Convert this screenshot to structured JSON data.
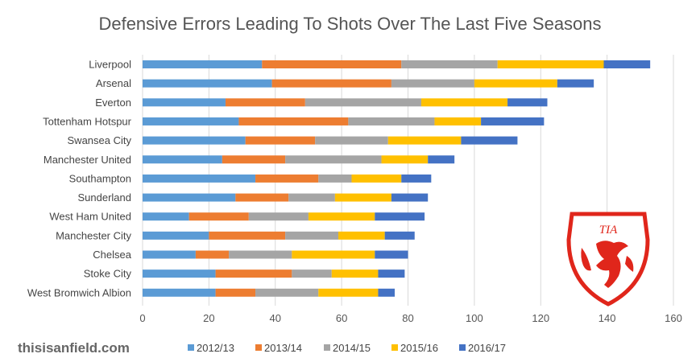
{
  "chart_data": {
    "type": "bar",
    "orientation": "horizontal",
    "stacked": true,
    "title": "Defensive Errors Leading To Shots Over The Last Five Seasons",
    "xlabel": "",
    "ylabel": "",
    "xlim": [
      0,
      160
    ],
    "xticks": [
      0,
      20,
      40,
      60,
      80,
      100,
      120,
      140,
      160
    ],
    "grid": true,
    "legend_position": "bottom",
    "categories": [
      "Liverpool",
      "Arsenal",
      "Everton",
      "Tottenham Hotspur",
      "Swansea City",
      "Manchester United",
      "Southampton",
      "Sunderland",
      "West Ham United",
      "Manchester City",
      "Chelsea",
      "Stoke City",
      "West Bromwich Albion"
    ],
    "series": [
      {
        "name": "2012/13",
        "color": "#5b9bd5",
        "values": [
          36,
          39,
          25,
          29,
          31,
          24,
          34,
          28,
          14,
          20,
          16,
          22,
          22
        ]
      },
      {
        "name": "2013/14",
        "color": "#ed7d31",
        "values": [
          42,
          36,
          24,
          33,
          21,
          19,
          19,
          16,
          18,
          23,
          10,
          23,
          12
        ]
      },
      {
        "name": "2014/15",
        "color": "#a5a5a5",
        "values": [
          29,
          25,
          35,
          26,
          22,
          29,
          10,
          14,
          18,
          16,
          19,
          12,
          19
        ]
      },
      {
        "name": "2015/16",
        "color": "#ffc000",
        "values": [
          32,
          25,
          26,
          14,
          22,
          14,
          15,
          17,
          20,
          14,
          25,
          14,
          18
        ]
      },
      {
        "name": "2016/17",
        "color": "#4472c4",
        "values": [
          14,
          11,
          12,
          19,
          17,
          8,
          9,
          11,
          15,
          9,
          10,
          8,
          5
        ]
      }
    ]
  },
  "branding": {
    "site": "thisisanfield.com",
    "logo_text": "TIA",
    "logo_color": "#e0261b"
  }
}
